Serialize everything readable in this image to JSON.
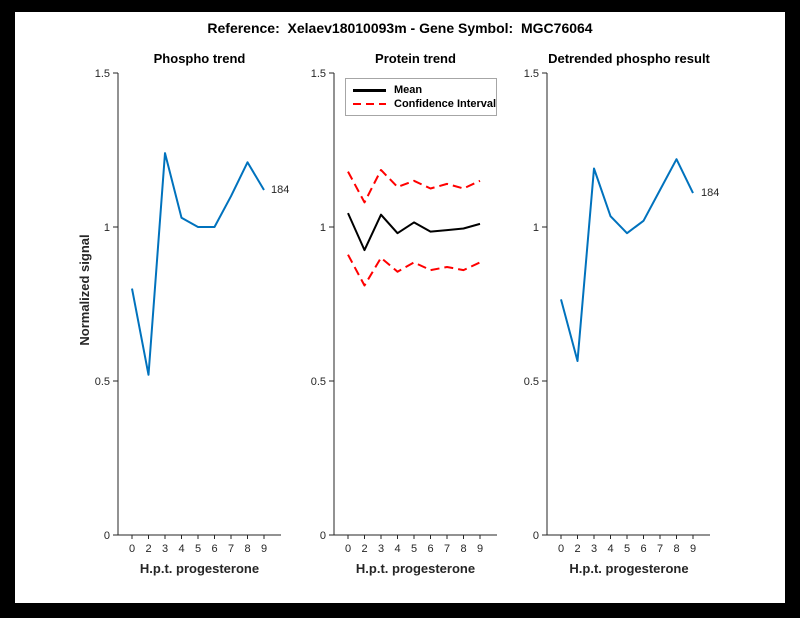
{
  "figure": {
    "title": "Reference:  Xelaev18010093m - Gene Symbol:  MGC76064",
    "background_color": "#ffffff",
    "frame_color": "#000000",
    "axis_color": "#262626",
    "accent_blue": "#0072BD",
    "accent_red": "#ff0000"
  },
  "chart_data": [
    {
      "type": "line",
      "title": "Phospho trend",
      "xlabel": "H.p.t. progesterone",
      "ylabel": "Normalized signal",
      "x_tick_labels": [
        "0",
        "2",
        "3",
        "4",
        "5",
        "6",
        "7",
        "8",
        "9"
      ],
      "y_tick_labels": [
        "0",
        "0.5",
        "1",
        "1.5"
      ],
      "y_tick_values": [
        0,
        0.5,
        1,
        1.5
      ],
      "ylim": [
        0,
        1.5
      ],
      "grid": false,
      "series": [
        {
          "name": "phospho-signal",
          "color": "#0072BD",
          "style": "solid",
          "values": [
            0.8,
            0.52,
            1.24,
            1.03,
            1.0,
            1.0,
            1.1,
            1.21,
            1.12
          ]
        }
      ],
      "end_label": "184"
    },
    {
      "type": "line",
      "title": "Protein trend",
      "xlabel": "H.p.t. progesterone",
      "ylabel": "Normalized signal",
      "x_tick_labels": [
        "0",
        "2",
        "3",
        "4",
        "5",
        "6",
        "7",
        "8",
        "9"
      ],
      "y_tick_labels": [
        "0",
        "0.5",
        "1",
        "1.5"
      ],
      "y_tick_values": [
        0,
        0.5,
        1,
        1.5
      ],
      "ylim": [
        0,
        1.5
      ],
      "grid": false,
      "legend_position": "top-left",
      "legend": [
        {
          "label": "Mean",
          "color": "#000000",
          "style": "solid"
        },
        {
          "label": "Confidence Interval",
          "color": "#ff0000",
          "style": "dashed"
        }
      ],
      "series": [
        {
          "name": "mean",
          "color": "#000000",
          "style": "solid",
          "values": [
            1.045,
            0.925,
            1.04,
            0.98,
            1.015,
            0.985,
            0.99,
            0.995,
            1.01
          ]
        },
        {
          "name": "confidence-interval-upper",
          "color": "#ff0000",
          "style": "dashed",
          "values": [
            1.18,
            1.08,
            1.185,
            1.13,
            1.15,
            1.125,
            1.14,
            1.125,
            1.15
          ]
        },
        {
          "name": "confidence-interval-lower",
          "color": "#ff0000",
          "style": "dashed",
          "values": [
            0.91,
            0.81,
            0.9,
            0.855,
            0.885,
            0.86,
            0.87,
            0.86,
            0.885
          ]
        }
      ]
    },
    {
      "type": "line",
      "title": "Detrended phospho result",
      "xlabel": "H.p.t. progesterone",
      "ylabel": "Normalized signal",
      "x_tick_labels": [
        "0",
        "2",
        "3",
        "4",
        "5",
        "6",
        "7",
        "8",
        "9"
      ],
      "y_tick_labels": [
        "0",
        "0.5",
        "1",
        "1.5"
      ],
      "y_tick_values": [
        0,
        0.5,
        1,
        1.5
      ],
      "ylim": [
        0,
        1.5
      ],
      "grid": false,
      "series": [
        {
          "name": "detrended-phospho-signal",
          "color": "#0072BD",
          "style": "solid",
          "values": [
            0.765,
            0.565,
            1.19,
            1.035,
            0.98,
            1.02,
            1.12,
            1.22,
            1.11
          ]
        }
      ],
      "end_label": "184"
    }
  ]
}
